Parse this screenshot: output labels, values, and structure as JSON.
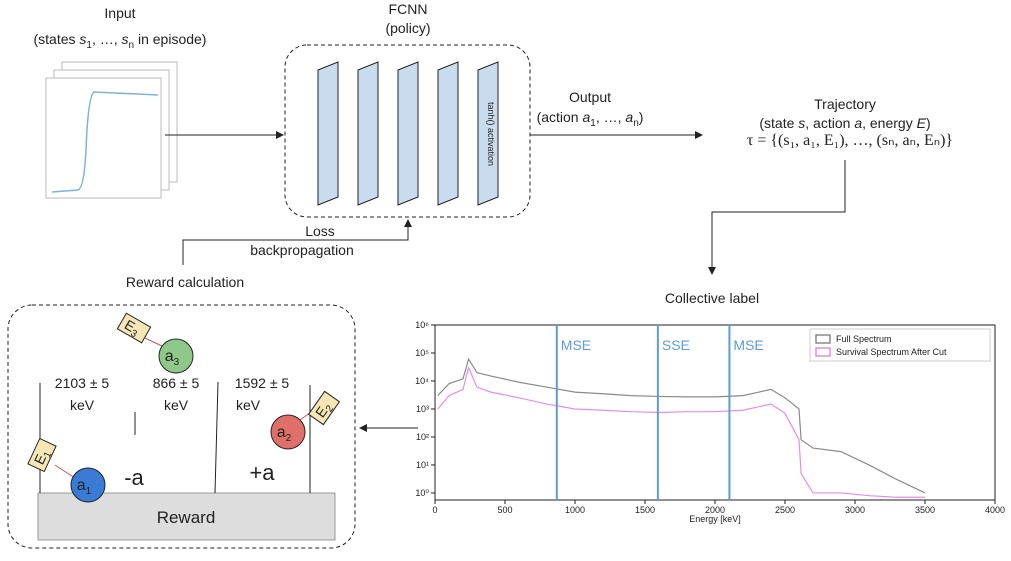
{
  "input": {
    "title": "Input",
    "caption": [
      "(states ",
      "s",
      "1",
      ", …, ",
      "s",
      "n",
      " in episode)"
    ]
  },
  "policy": {
    "title": "FCNN",
    "subtitle": "(policy)",
    "activation": "tanh() activation"
  },
  "output": {
    "title": "Output",
    "caption": [
      "(action ",
      "a",
      "1",
      ", …, ",
      "a",
      "n",
      ")"
    ]
  },
  "trajectory": {
    "title": "Trajectory",
    "caption": [
      "(state ",
      "s",
      ", action ",
      "a",
      ", energy ",
      "E",
      ")"
    ],
    "formula": "τ = {(s₁, a₁, E₁), …, (sₙ, aₙ, Eₙ)}"
  },
  "loss": {
    "title": "Loss",
    "subtitle": "backpropagation"
  },
  "reward": {
    "title": "Reward calculation",
    "box_label": "Reward",
    "windows": [
      {
        "value": "2103 ± 5",
        "unit": "keV"
      },
      {
        "value": "866 ± 5",
        "unit": "keV"
      },
      {
        "value": "1592 ± 5",
        "unit": "keV"
      }
    ],
    "signs": [
      "-a",
      "+a"
    ],
    "actions": [
      {
        "label": "a",
        "sub": "1",
        "tag": "E",
        "tag_sub": "1"
      },
      {
        "label": "a",
        "sub": "2",
        "tag": "E",
        "tag_sub": "2"
      },
      {
        "label": "a",
        "sub": "3",
        "tag": "E",
        "tag_sub": "3"
      }
    ]
  },
  "label": {
    "title": "Collective label",
    "chart_data": {
      "type": "line",
      "xlabel": "Energy [keV]",
      "x": [
        20,
        100,
        200,
        240,
        300,
        400,
        600,
        800,
        1000,
        1200,
        1400,
        1600,
        1800,
        2000,
        2200,
        2400,
        2500,
        2600,
        2615,
        2700,
        2900,
        3100,
        3300,
        3500
      ],
      "series": [
        {
          "name": "Full Spectrum",
          "color": "#8a8a8a",
          "values": [
            3000,
            8000,
            12000,
            60000,
            20000,
            15000,
            9000,
            6000,
            4000,
            3500,
            3000,
            2800,
            2700,
            2700,
            3000,
            5000,
            2500,
            1000,
            80,
            40,
            30,
            10,
            3,
            1
          ]
        },
        {
          "name": "Survival Spectrum After Cut",
          "color": "#e88ce8",
          "values": [
            1000,
            3000,
            5000,
            30000,
            6000,
            4000,
            2500,
            1500,
            1000,
            900,
            800,
            750,
            800,
            800,
            900,
            1500,
            700,
            80,
            5,
            1,
            1,
            0.8,
            0.7,
            0.7
          ]
        }
      ],
      "cut_lines": [
        {
          "value": 870,
          "label": "MSE"
        },
        {
          "value": 1592,
          "label": "SSE"
        },
        {
          "value": 2103,
          "label": "MSE"
        }
      ],
      "cut_color": "#5b9be0",
      "xlim": [
        0,
        4000
      ],
      "xticks": [
        0,
        500,
        1000,
        1500,
        2000,
        2500,
        3000,
        3500,
        4000
      ],
      "log_y": true,
      "ylim": [
        0.56,
        1000000
      ],
      "yticks": [
        {
          "value": 1,
          "label": "10⁰"
        },
        {
          "value": 10,
          "label": "10¹"
        },
        {
          "value": 100,
          "label": "10²"
        },
        {
          "value": 1000,
          "label": "10³"
        },
        {
          "value": 10000,
          "label": "10⁴"
        },
        {
          "value": 100000,
          "label": "10⁵"
        },
        {
          "value": 1000000,
          "label": "10⁶"
        }
      ],
      "legend": "upper right"
    }
  }
}
